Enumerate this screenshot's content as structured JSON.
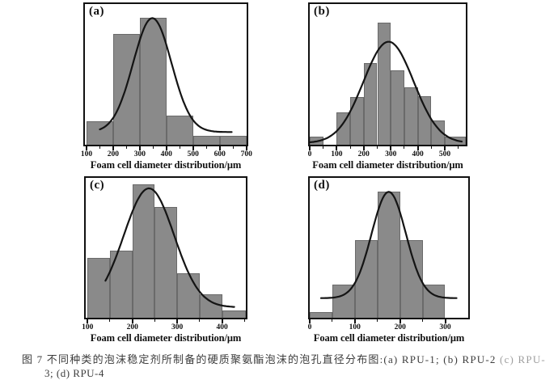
{
  "figure": {
    "caption": {
      "line1": "图 7  不同种类的泡沫稳定剂所制备的硬质聚氨酯泡沫的泡孔直径分布图:(a) RPU-1; (b) RPU-2",
      "line1_faded": "  (c) RPU-",
      "line2": "3; (d) RPU-4"
    }
  },
  "colors": {
    "background": "#ffffff",
    "bar_fill": "#8a8a8a",
    "bar_edge": "#6a6a6a",
    "curve": "#141414",
    "axis": "#111111",
    "caption_text": "#3d3d3d"
  },
  "chart_data": [
    {
      "type": "bar",
      "subtype": "histogram-with-gaussian-fit",
      "label": "(a)",
      "series_name": "RPU-1",
      "xlabel": "Foam cell diameter distribution/μm",
      "xlim": [
        94,
        701
      ],
      "xticks": [
        100,
        200,
        300,
        400,
        500,
        600,
        700
      ],
      "xtick_labels": [
        "100",
        "200",
        "300",
        "400",
        "500",
        "600",
        "700"
      ],
      "minor_tick_step": 50,
      "grid": false,
      "legend": "none",
      "bars": [
        {
          "from": 100,
          "to": 200,
          "height_frac": 0.165
        },
        {
          "from": 200,
          "to": 300,
          "height_frac": 0.79
        },
        {
          "from": 300,
          "to": 400,
          "height_frac": 0.9
        },
        {
          "from": 400,
          "to": 500,
          "height_frac": 0.21
        },
        {
          "from": 500,
          "to": 600,
          "height_frac": 0.066
        },
        {
          "from": 600,
          "to": 700,
          "height_frac": 0.066
        }
      ],
      "curve": {
        "type": "gaussian",
        "mean": 347,
        "sd": 72,
        "amplitude": 0.81,
        "baseline": 0.09,
        "x_start": 150,
        "x_end": 645
      }
    },
    {
      "type": "bar",
      "subtype": "histogram-with-gaussian-fit",
      "label": "(b)",
      "series_name": "RPU-2",
      "xlabel": "Foam cell diameter distribution/μm",
      "xlim": [
        0,
        578
      ],
      "xticks": [
        0,
        100,
        200,
        300,
        400,
        500
      ],
      "xtick_labels": [
        "0",
        "100",
        "200",
        "300",
        "400",
        "500"
      ],
      "minor_tick_step": 50,
      "grid": false,
      "legend": "none",
      "bars": [
        {
          "from": 0,
          "to": 50,
          "height_frac": 0.06
        },
        {
          "from": 50,
          "to": 100,
          "height_frac": 0.0
        },
        {
          "from": 100,
          "to": 150,
          "height_frac": 0.233
        },
        {
          "from": 150,
          "to": 200,
          "height_frac": 0.34
        },
        {
          "from": 200,
          "to": 250,
          "height_frac": 0.58
        },
        {
          "from": 250,
          "to": 300,
          "height_frac": 0.87
        },
        {
          "from": 300,
          "to": 350,
          "height_frac": 0.53
        },
        {
          "from": 350,
          "to": 400,
          "height_frac": 0.41
        },
        {
          "from": 400,
          "to": 450,
          "height_frac": 0.345
        },
        {
          "from": 450,
          "to": 500,
          "height_frac": 0.17
        },
        {
          "from": 500,
          "to": 578,
          "height_frac": 0.06
        }
      ],
      "curve": {
        "type": "gaussian",
        "mean": 292,
        "sd": 93,
        "amplitude": 0.72,
        "baseline": 0.012,
        "x_start": 2,
        "x_end": 563
      }
    },
    {
      "type": "bar",
      "subtype": "histogram-with-gaussian-fit",
      "label": "(c)",
      "series_name": "RPU-3",
      "xlabel": "Foam cell diameter distribution/μm",
      "xlim": [
        96,
        453
      ],
      "xticks": [
        100,
        200,
        300,
        400
      ],
      "xtick_labels": [
        "100",
        "200",
        "300",
        "400"
      ],
      "minor_tick_step": 50,
      "grid": false,
      "legend": "none",
      "bars": [
        {
          "from": 100,
          "to": 150,
          "height_frac": 0.43
        },
        {
          "from": 150,
          "to": 200,
          "height_frac": 0.48
        },
        {
          "from": 200,
          "to": 250,
          "height_frac": 0.955
        },
        {
          "from": 250,
          "to": 300,
          "height_frac": 0.795
        },
        {
          "from": 300,
          "to": 350,
          "height_frac": 0.32
        },
        {
          "from": 350,
          "to": 400,
          "height_frac": 0.17
        },
        {
          "from": 400,
          "to": 453,
          "height_frac": 0.055
        }
      ],
      "curve": {
        "type": "gaussian",
        "mean": 237,
        "sd": 56,
        "amplitude": 0.85,
        "baseline": 0.075,
        "x_start": 140,
        "x_end": 427
      }
    },
    {
      "type": "bar",
      "subtype": "histogram-with-gaussian-fit",
      "label": "(d)",
      "series_name": "RPU-4",
      "xlabel": "Foam cell diameter distribution/μm",
      "xlim": [
        0,
        351
      ],
      "xticks": [
        0,
        100,
        200,
        300
      ],
      "xtick_labels": [
        "0",
        "100",
        "200",
        "300"
      ],
      "minor_tick_step": 50,
      "grid": false,
      "legend": "none",
      "bars": [
        {
          "from": 0,
          "to": 50,
          "height_frac": 0.04
        },
        {
          "from": 50,
          "to": 100,
          "height_frac": 0.24
        },
        {
          "from": 100,
          "to": 150,
          "height_frac": 0.555
        },
        {
          "from": 150,
          "to": 200,
          "height_frac": 0.9
        },
        {
          "from": 200,
          "to": 250,
          "height_frac": 0.555
        },
        {
          "from": 250,
          "to": 300,
          "height_frac": 0.24
        }
      ],
      "curve": {
        "type": "gaussian",
        "mean": 175,
        "sd": 38,
        "amplitude": 0.76,
        "baseline": 0.14,
        "x_start": 25,
        "x_end": 325
      }
    }
  ]
}
